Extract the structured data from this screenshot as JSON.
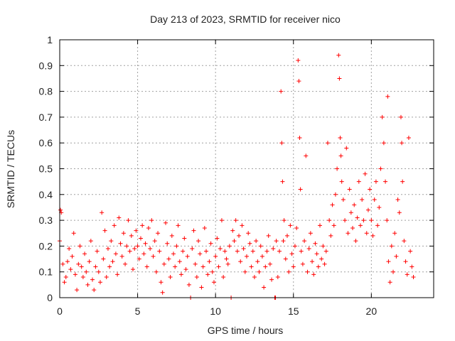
{
  "chart_data": {
    "type": "scatter",
    "title": "Day 213 of 2023, SRMTID for receiver nico",
    "xlabel": "GPS time / hours",
    "ylabel": "SRMTID / TECUs",
    "xlim": [
      0,
      24
    ],
    "ylim": [
      0,
      1
    ],
    "grid": true,
    "marker": "plus",
    "color": "#ff0000",
    "x_ticks": [
      {
        "value": 0,
        "label": "0"
      },
      {
        "value": 5,
        "label": "5"
      },
      {
        "value": 10,
        "label": "10"
      },
      {
        "value": 15,
        "label": "15"
      },
      {
        "value": 20,
        "label": "20"
      }
    ],
    "y_ticks": [
      {
        "value": 0,
        "label": "0"
      },
      {
        "value": 0.1,
        "label": "0.1"
      },
      {
        "value": 0.2,
        "label": "0.2"
      },
      {
        "value": 0.3,
        "label": "0.3"
      },
      {
        "value": 0.4,
        "label": "0.4"
      },
      {
        "value": 0.5,
        "label": "0.5"
      },
      {
        "value": 0.6,
        "label": "0.6"
      },
      {
        "value": 0.7,
        "label": "0.7"
      },
      {
        "value": 0.8,
        "label": "0.8"
      },
      {
        "value": 0.9,
        "label": "0.9"
      },
      {
        "value": 1.0,
        "label": "1"
      }
    ],
    "series": [
      {
        "name": "SRMTID",
        "points": [
          [
            0.0,
            0.22
          ],
          [
            0.05,
            0.34
          ],
          [
            0.1,
            0.33
          ],
          [
            0.2,
            0.13
          ],
          [
            0.3,
            0.06
          ],
          [
            0.4,
            0.08
          ],
          [
            0.5,
            0.14
          ],
          [
            0.6,
            0.19
          ],
          [
            0.7,
            0.11
          ],
          [
            0.8,
            0.16
          ],
          [
            0.9,
            0.25
          ],
          [
            1.0,
            0.09
          ],
          [
            1.1,
            0.03
          ],
          [
            1.2,
            0.13
          ],
          [
            1.3,
            0.2
          ],
          [
            1.4,
            0.12
          ],
          [
            1.5,
            0.08
          ],
          [
            1.6,
            0.17
          ],
          [
            1.7,
            0.1
          ],
          [
            1.8,
            0.05
          ],
          [
            1.9,
            0.14
          ],
          [
            2.0,
            0.22
          ],
          [
            2.1,
            0.07
          ],
          [
            2.2,
            0.03
          ],
          [
            2.3,
            0.12
          ],
          [
            2.4,
            0.18
          ],
          [
            2.5,
            0.1
          ],
          [
            2.6,
            0.06
          ],
          [
            2.7,
            0.33
          ],
          [
            2.8,
            0.15
          ],
          [
            2.9,
            0.26
          ],
          [
            3.0,
            0.08
          ],
          [
            3.1,
            0.19
          ],
          [
            3.2,
            0.12
          ],
          [
            3.3,
            0.22
          ],
          [
            3.4,
            0.14
          ],
          [
            3.5,
            0.28
          ],
          [
            3.6,
            0.17
          ],
          [
            3.7,
            0.09
          ],
          [
            3.8,
            0.31
          ],
          [
            3.9,
            0.21
          ],
          [
            4.0,
            0.16
          ],
          [
            4.1,
            0.25
          ],
          [
            4.2,
            0.13
          ],
          [
            4.3,
            0.2
          ],
          [
            4.4,
            0.3
          ],
          [
            4.5,
            0.18
          ],
          [
            4.6,
            0.24
          ],
          [
            4.7,
            0.11
          ],
          [
            4.8,
            0.19
          ],
          [
            4.9,
            0.26
          ],
          [
            5.0,
            0.2
          ],
          [
            5.1,
            0.15
          ],
          [
            5.2,
            0.23
          ],
          [
            5.3,
            0.28
          ],
          [
            5.4,
            0.17
          ],
          [
            5.5,
            0.21
          ],
          [
            5.6,
            0.12
          ],
          [
            5.7,
            0.27
          ],
          [
            5.8,
            0.19
          ],
          [
            5.9,
            0.3
          ],
          [
            6.0,
            0.16
          ],
          [
            6.1,
            0.22
          ],
          [
            6.2,
            0.1
          ],
          [
            6.3,
            0.25
          ],
          [
            6.4,
            0.18
          ],
          [
            6.5,
            0.06
          ],
          [
            6.6,
            0.02
          ],
          [
            6.7,
            0.13
          ],
          [
            6.8,
            0.29
          ],
          [
            6.9,
            0.21
          ],
          [
            7.0,
            0.15
          ],
          [
            7.1,
            0.08
          ],
          [
            7.2,
            0.24
          ],
          [
            7.3,
            0.17
          ],
          [
            7.4,
            0.12
          ],
          [
            7.5,
            0.2
          ],
          [
            7.6,
            0.28
          ],
          [
            7.7,
            0.14
          ],
          [
            7.8,
            0.09
          ],
          [
            7.9,
            0.18
          ],
          [
            8.0,
            0.23
          ],
          [
            8.1,
            0.11
          ],
          [
            8.2,
            0.16
          ],
          [
            8.3,
            0.05
          ],
          [
            8.4,
            0.0
          ],
          [
            8.5,
            0.19
          ],
          [
            8.6,
            0.26
          ],
          [
            8.7,
            0.13
          ],
          [
            8.8,
            0.08
          ],
          [
            8.9,
            0.22
          ],
          [
            9.0,
            0.17
          ],
          [
            9.1,
            0.04
          ],
          [
            9.2,
            0.12
          ],
          [
            9.3,
            0.27
          ],
          [
            9.4,
            0.18
          ],
          [
            9.5,
            0.09
          ],
          [
            9.6,
            0.14
          ],
          [
            9.7,
            0.21
          ],
          [
            9.8,
            0.1
          ],
          [
            9.9,
            0.06
          ],
          [
            10.0,
            0.16
          ],
          [
            10.1,
            0.23
          ],
          [
            10.2,
            0.12
          ],
          [
            10.3,
            0.19
          ],
          [
            10.4,
            0.3
          ],
          [
            10.5,
            0.08
          ],
          [
            10.6,
            0.18
          ],
          [
            10.7,
            0.15
          ],
          [
            10.8,
            0.13
          ],
          [
            10.9,
            0.2
          ],
          [
            11.0,
            0.0
          ],
          [
            11.1,
            0.26
          ],
          [
            11.2,
            0.22
          ],
          [
            11.3,
            0.3
          ],
          [
            11.4,
            0.18
          ],
          [
            11.5,
            0.24
          ],
          [
            11.6,
            0.14
          ],
          [
            11.7,
            0.28
          ],
          [
            11.8,
            0.19
          ],
          [
            11.9,
            0.1
          ],
          [
            12.0,
            0.16
          ],
          [
            12.1,
            0.25
          ],
          [
            12.2,
            0.21
          ],
          [
            12.3,
            0.12
          ],
          [
            12.4,
            0.18
          ],
          [
            12.5,
            0.08
          ],
          [
            12.6,
            0.22
          ],
          [
            12.7,
            0.14
          ],
          [
            12.8,
            0.1
          ],
          [
            12.9,
            0.2
          ],
          [
            13.0,
            0.16
          ],
          [
            13.1,
            0.04
          ],
          [
            13.2,
            0.12
          ],
          [
            13.3,
            0.18
          ],
          [
            13.4,
            0.24
          ],
          [
            13.5,
            0.13
          ],
          [
            13.6,
            0.07
          ],
          [
            13.7,
            0.19
          ],
          [
            13.8,
            0.0
          ],
          [
            13.85,
            0.0
          ],
          [
            13.9,
            0.22
          ],
          [
            14.0,
            0.08
          ],
          [
            14.1,
            0.18
          ],
          [
            14.2,
            0.8
          ],
          [
            14.25,
            0.6
          ],
          [
            14.3,
            0.45
          ],
          [
            14.35,
            0.22
          ],
          [
            14.4,
            0.3
          ],
          [
            14.5,
            0.15
          ],
          [
            14.6,
            0.24
          ],
          [
            14.7,
            0.1
          ],
          [
            14.8,
            0.28
          ],
          [
            14.9,
            0.17
          ],
          [
            15.0,
            0.12
          ],
          [
            15.1,
            0.2
          ],
          [
            15.2,
            0.27
          ],
          [
            15.3,
            0.92
          ],
          [
            15.35,
            0.84
          ],
          [
            15.4,
            0.62
          ],
          [
            15.45,
            0.42
          ],
          [
            15.5,
            0.18
          ],
          [
            15.6,
            0.13
          ],
          [
            15.7,
            0.22
          ],
          [
            15.8,
            0.55
          ],
          [
            15.9,
            0.1
          ],
          [
            16.0,
            0.19
          ],
          [
            16.1,
            0.25
          ],
          [
            16.2,
            0.14
          ],
          [
            16.3,
            0.09
          ],
          [
            16.4,
            0.21
          ],
          [
            16.5,
            0.17
          ],
          [
            16.6,
            0.12
          ],
          [
            16.7,
            0.28
          ],
          [
            16.8,
            0.15
          ],
          [
            16.9,
            0.2
          ],
          [
            17.0,
            0.13
          ],
          [
            17.1,
            0.18
          ],
          [
            17.2,
            0.6
          ],
          [
            17.3,
            0.3
          ],
          [
            17.4,
            0.24
          ],
          [
            17.5,
            0.36
          ],
          [
            17.6,
            0.28
          ],
          [
            17.7,
            0.4
          ],
          [
            17.8,
            0.5
          ],
          [
            17.9,
            0.94
          ],
          [
            17.95,
            0.85
          ],
          [
            18.0,
            0.62
          ],
          [
            18.05,
            0.55
          ],
          [
            18.1,
            0.45
          ],
          [
            18.2,
            0.38
          ],
          [
            18.3,
            0.3
          ],
          [
            18.4,
            0.58
          ],
          [
            18.5,
            0.25
          ],
          [
            18.6,
            0.42
          ],
          [
            18.7,
            0.33
          ],
          [
            18.8,
            0.27
          ],
          [
            18.9,
            0.36
          ],
          [
            19.0,
            0.22
          ],
          [
            19.1,
            0.31
          ],
          [
            19.2,
            0.45
          ],
          [
            19.3,
            0.28
          ],
          [
            19.4,
            0.38
          ],
          [
            19.5,
            0.3
          ],
          [
            19.6,
            0.48
          ],
          [
            19.7,
            0.25
          ],
          [
            19.8,
            0.34
          ],
          [
            19.9,
            0.42
          ],
          [
            20.0,
            0.3
          ],
          [
            20.1,
            0.24
          ],
          [
            20.2,
            0.38
          ],
          [
            20.3,
            0.45
          ],
          [
            20.4,
            0.28
          ],
          [
            20.5,
            0.35
          ],
          [
            20.6,
            0.5
          ],
          [
            20.7,
            0.7
          ],
          [
            20.8,
            0.6
          ],
          [
            20.9,
            0.45
          ],
          [
            21.0,
            0.3
          ],
          [
            21.05,
            0.78
          ],
          [
            21.1,
            0.14
          ],
          [
            21.2,
            0.06
          ],
          [
            21.3,
            0.2
          ],
          [
            21.4,
            0.1
          ],
          [
            21.5,
            0.25
          ],
          [
            21.6,
            0.16
          ],
          [
            21.7,
            0.38
          ],
          [
            21.8,
            0.33
          ],
          [
            21.9,
            0.7
          ],
          [
            21.95,
            0.6
          ],
          [
            22.0,
            0.45
          ],
          [
            22.1,
            0.22
          ],
          [
            22.2,
            0.14
          ],
          [
            22.3,
            0.09
          ],
          [
            22.4,
            0.62
          ],
          [
            22.5,
            0.18
          ],
          [
            22.6,
            0.12
          ],
          [
            22.7,
            0.08
          ]
        ]
      }
    ]
  }
}
